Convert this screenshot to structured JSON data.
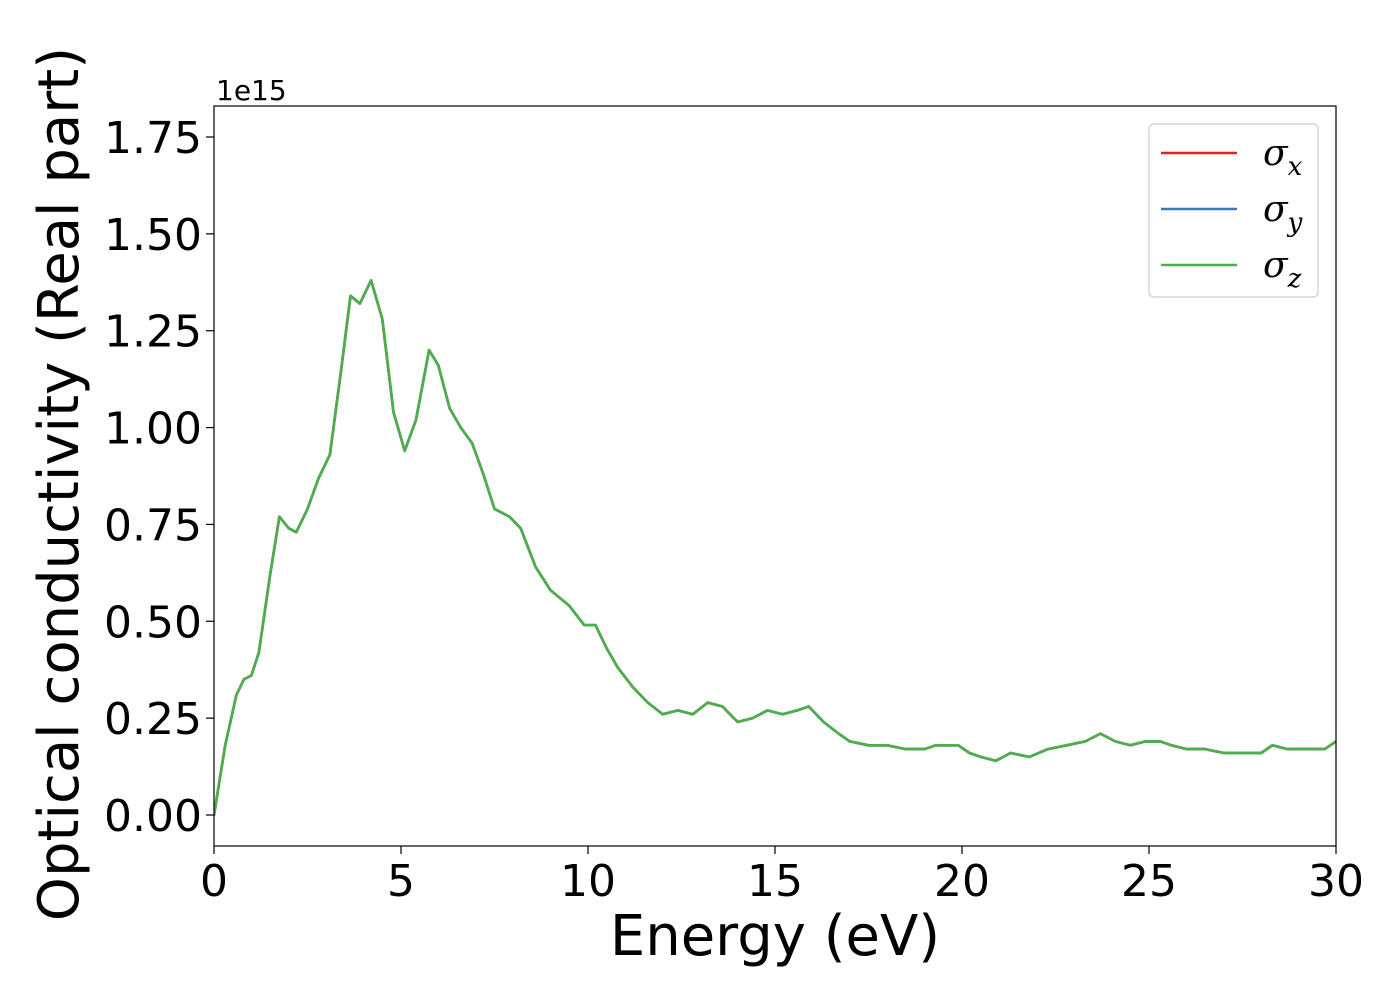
{
  "chart_data": {
    "type": "line",
    "xlabel": "Energy (eV)",
    "ylabel": "Optical conductivity (Real part)",
    "y_offset_text": "1e15",
    "xlim": [
      0,
      30
    ],
    "ylim": [
      -0.08,
      1.83
    ],
    "xticks": [
      0,
      5,
      10,
      15,
      20,
      25,
      30
    ],
    "yticks": [
      0.0,
      0.25,
      0.5,
      0.75,
      1.0,
      1.25,
      1.5,
      1.75
    ],
    "xtick_labels": [
      "0",
      "5",
      "10",
      "15",
      "20",
      "25",
      "30"
    ],
    "ytick_labels": [
      "0.00",
      "0.25",
      "0.50",
      "0.75",
      "1.00",
      "1.25",
      "1.50",
      "1.75"
    ],
    "legend_position": "top-right",
    "grid": false,
    "x": [
      0,
      0.3,
      0.6,
      0.8,
      1.0,
      1.2,
      1.5,
      1.75,
      2.0,
      2.2,
      2.5,
      2.8,
      3.1,
      3.4,
      3.65,
      3.9,
      4.2,
      4.5,
      4.8,
      5.1,
      5.4,
      5.75,
      6.0,
      6.3,
      6.6,
      6.9,
      7.2,
      7.5,
      7.9,
      8.2,
      8.6,
      9.0,
      9.5,
      9.9,
      10.2,
      10.5,
      10.8,
      11.2,
      11.6,
      12.0,
      12.4,
      12.8,
      13.2,
      13.6,
      14.0,
      14.4,
      14.8,
      15.2,
      15.6,
      15.9,
      16.3,
      16.7,
      17.0,
      17.5,
      18.0,
      18.5,
      19.0,
      19.3,
      19.6,
      19.9,
      20.2,
      20.5,
      20.9,
      21.3,
      21.8,
      22.3,
      22.8,
      23.3,
      23.7,
      24.1,
      24.5,
      24.9,
      25.3,
      25.6,
      26.0,
      26.5,
      27.0,
      27.5,
      28.0,
      28.3,
      28.7,
      29.2,
      29.7,
      30.0
    ],
    "series": [
      {
        "name": "σ_x",
        "legend_base": "σ",
        "legend_sub": "x",
        "color": "#d62728",
        "values": [
          0.0,
          0.18,
          0.31,
          0.35,
          0.36,
          0.42,
          0.62,
          0.77,
          0.74,
          0.73,
          0.79,
          0.87,
          0.93,
          1.15,
          1.34,
          1.32,
          1.38,
          1.28,
          1.04,
          0.94,
          1.02,
          1.2,
          1.16,
          1.05,
          1.0,
          0.96,
          0.88,
          0.79,
          0.77,
          0.74,
          0.64,
          0.58,
          0.54,
          0.49,
          0.49,
          0.43,
          0.38,
          0.33,
          0.29,
          0.26,
          0.27,
          0.26,
          0.29,
          0.28,
          0.24,
          0.25,
          0.27,
          0.26,
          0.27,
          0.28,
          0.24,
          0.21,
          0.19,
          0.18,
          0.18,
          0.17,
          0.17,
          0.18,
          0.18,
          0.18,
          0.16,
          0.15,
          0.14,
          0.16,
          0.15,
          0.17,
          0.18,
          0.19,
          0.21,
          0.19,
          0.18,
          0.19,
          0.19,
          0.18,
          0.17,
          0.17,
          0.16,
          0.16,
          0.16,
          0.18,
          0.17,
          0.17,
          0.17,
          0.19
        ]
      },
      {
        "name": "σ_y",
        "legend_base": "σ",
        "legend_sub": "y",
        "color": "#3b7ab8",
        "values": [
          0.0,
          0.18,
          0.31,
          0.35,
          0.36,
          0.42,
          0.62,
          0.77,
          0.74,
          0.73,
          0.79,
          0.87,
          0.93,
          1.15,
          1.34,
          1.32,
          1.38,
          1.28,
          1.04,
          0.94,
          1.02,
          1.2,
          1.16,
          1.05,
          1.0,
          0.96,
          0.88,
          0.79,
          0.77,
          0.74,
          0.64,
          0.58,
          0.54,
          0.49,
          0.49,
          0.43,
          0.38,
          0.33,
          0.29,
          0.26,
          0.27,
          0.26,
          0.29,
          0.28,
          0.24,
          0.25,
          0.27,
          0.26,
          0.27,
          0.28,
          0.24,
          0.21,
          0.19,
          0.18,
          0.18,
          0.17,
          0.17,
          0.18,
          0.18,
          0.18,
          0.16,
          0.15,
          0.14,
          0.16,
          0.15,
          0.17,
          0.18,
          0.19,
          0.21,
          0.19,
          0.18,
          0.19,
          0.19,
          0.18,
          0.17,
          0.17,
          0.16,
          0.16,
          0.16,
          0.18,
          0.17,
          0.17,
          0.17,
          0.19
        ]
      },
      {
        "name": "σ_z",
        "legend_base": "σ",
        "legend_sub": "z",
        "color": "#4daf4a",
        "values": [
          0.0,
          0.18,
          0.31,
          0.35,
          0.36,
          0.42,
          0.62,
          0.77,
          0.74,
          0.73,
          0.79,
          0.87,
          0.93,
          1.15,
          1.34,
          1.32,
          1.38,
          1.28,
          1.04,
          0.94,
          1.02,
          1.2,
          1.16,
          1.05,
          1.0,
          0.96,
          0.88,
          0.79,
          0.77,
          0.74,
          0.64,
          0.58,
          0.54,
          0.49,
          0.49,
          0.43,
          0.38,
          0.33,
          0.29,
          0.26,
          0.27,
          0.26,
          0.29,
          0.28,
          0.24,
          0.25,
          0.27,
          0.26,
          0.27,
          0.28,
          0.24,
          0.21,
          0.19,
          0.18,
          0.18,
          0.17,
          0.17,
          0.18,
          0.18,
          0.18,
          0.16,
          0.15,
          0.14,
          0.16,
          0.15,
          0.17,
          0.18,
          0.19,
          0.21,
          0.19,
          0.18,
          0.19,
          0.19,
          0.18,
          0.17,
          0.17,
          0.16,
          0.16,
          0.16,
          0.18,
          0.17,
          0.17,
          0.17,
          0.19
        ]
      }
    ]
  }
}
